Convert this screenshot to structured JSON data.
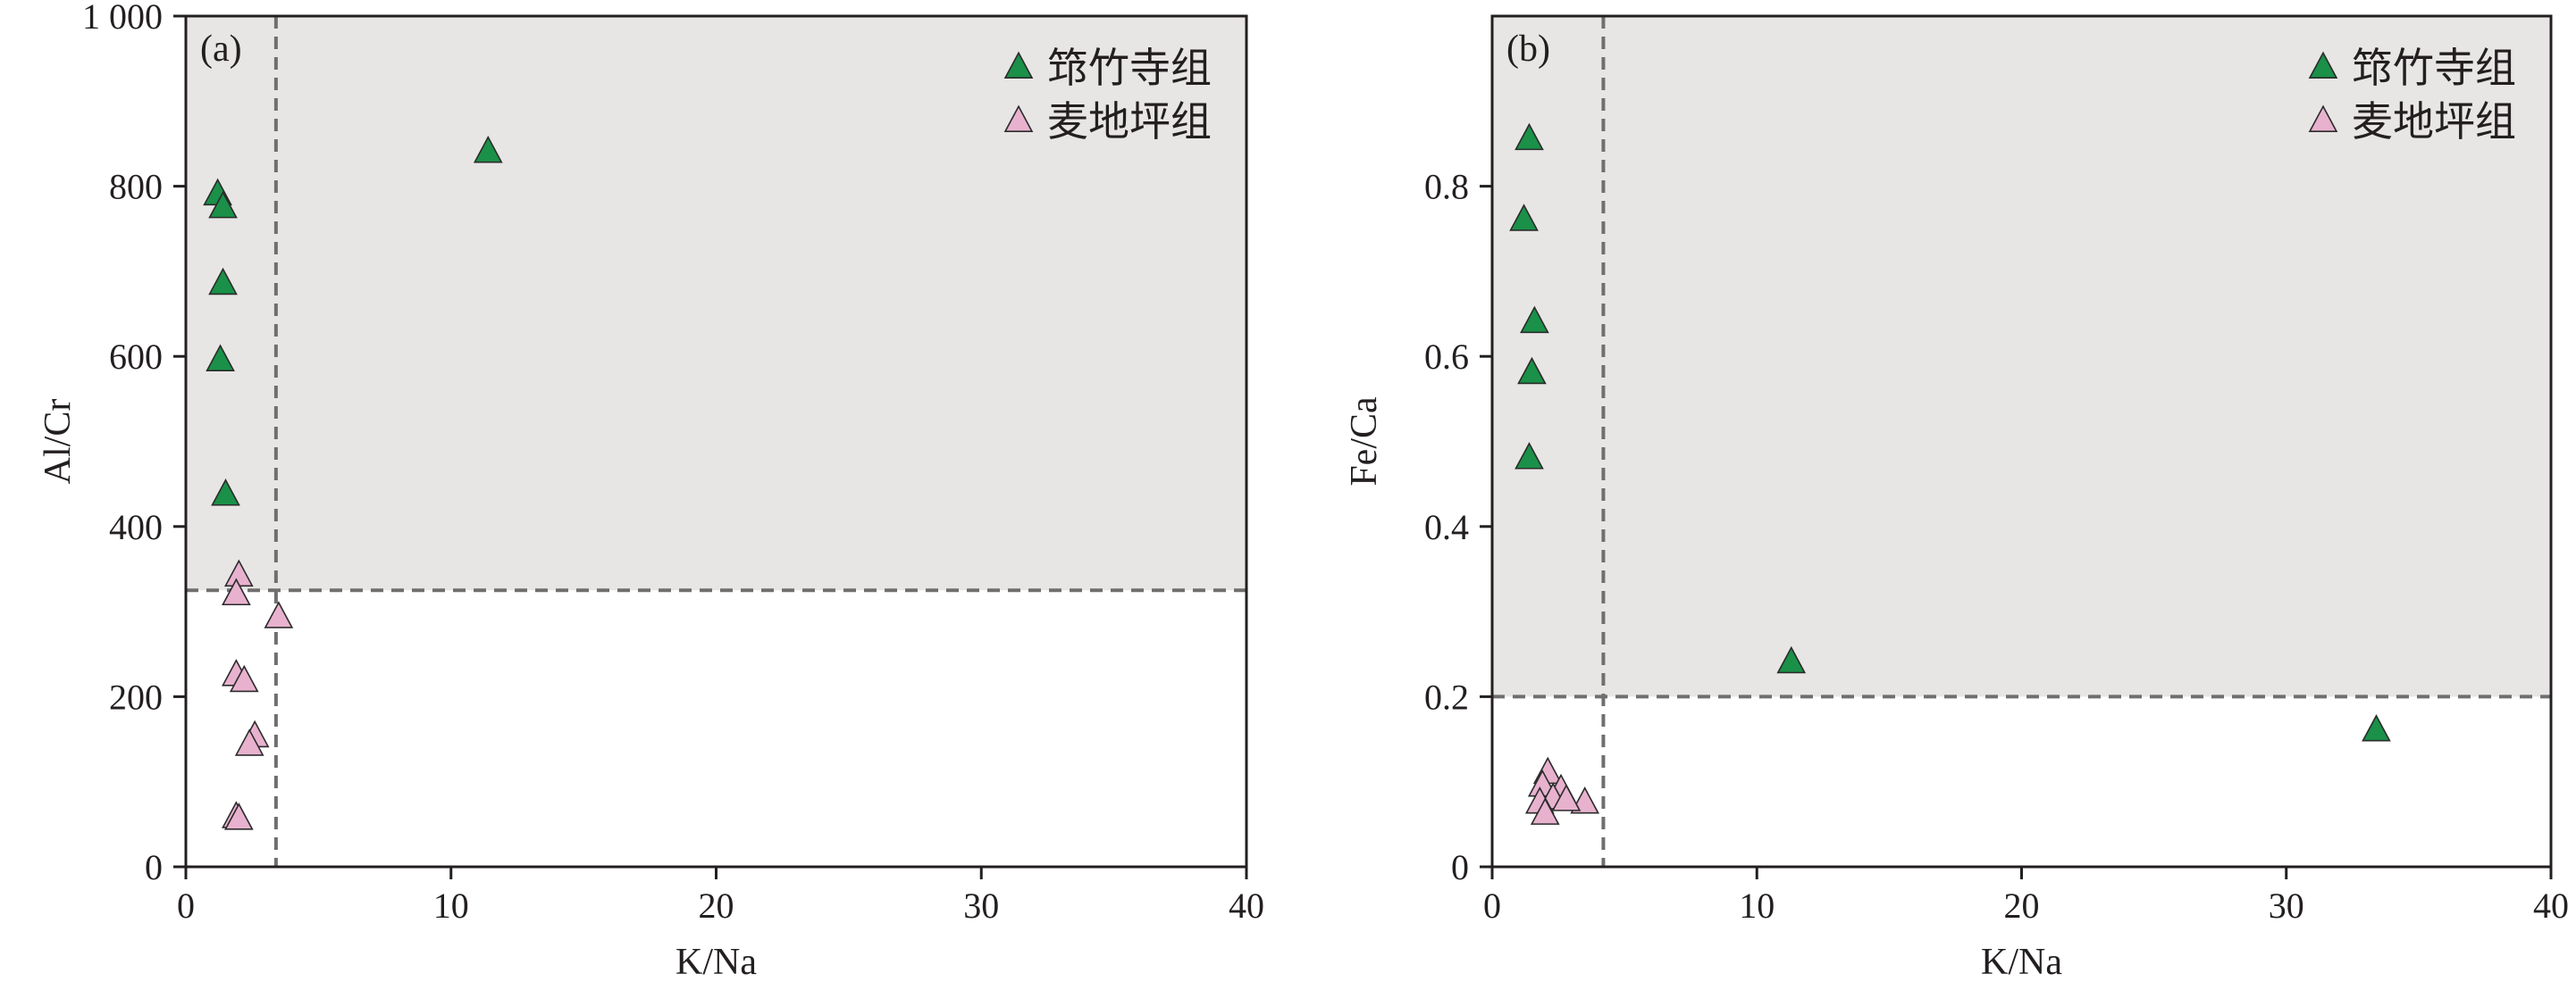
{
  "chart_data": [
    {
      "panel": "(a)",
      "type": "scatter",
      "xlabel": "K/Na",
      "ylabel": "Al/Cr",
      "xlim": [
        0,
        40
      ],
      "ylim": [
        0,
        1000
      ],
      "xticks": [
        0,
        10,
        20,
        30,
        40
      ],
      "xtick_labels": [
        "0",
        "10",
        "20",
        "30",
        "40"
      ],
      "yticks": [
        0,
        200,
        400,
        600,
        800,
        1000
      ],
      "ytick_labels": [
        "0",
        "200",
        "400",
        "600",
        "800",
        "1 000"
      ],
      "grid": false,
      "legend_position": "top-right",
      "threshold_x": 3.4,
      "threshold_y": 325,
      "shaded_region": "above threshold_y",
      "series": [
        {
          "name": "筇竹寺组",
          "color": "#1a9048",
          "marker": "triangle",
          "points": [
            [
              1.2,
              790
            ],
            [
              1.4,
              775
            ],
            [
              1.4,
              685
            ],
            [
              1.3,
              595
            ],
            [
              1.5,
              437
            ],
            [
              11.4,
              840
            ]
          ]
        },
        {
          "name": "麦地坪组",
          "color": "#e8b2cf",
          "marker": "triangle",
          "points": [
            [
              2.0,
              342
            ],
            [
              1.9,
              320
            ],
            [
              3.5,
              293
            ],
            [
              1.9,
              225
            ],
            [
              2.2,
              218
            ],
            [
              2.6,
              153
            ],
            [
              2.4,
              143
            ],
            [
              1.9,
              58
            ],
            [
              2.0,
              56
            ]
          ]
        }
      ]
    },
    {
      "panel": "(b)",
      "type": "scatter",
      "xlabel": "K/Na",
      "ylabel": "Fe/Ca",
      "xlim": [
        0,
        40
      ],
      "ylim": [
        0,
        1.0
      ],
      "xticks": [
        0,
        10,
        20,
        30,
        40
      ],
      "xtick_labels": [
        "0",
        "10",
        "20",
        "30",
        "40"
      ],
      "yticks": [
        0,
        0.2,
        0.4,
        0.6,
        0.8
      ],
      "ytick_labels": [
        "0",
        "0.2",
        "0.4",
        "0.6",
        "0.8"
      ],
      "grid": false,
      "legend_position": "top-right",
      "threshold_x": 4.2,
      "threshold_y": 0.2,
      "shaded_region": "above threshold_y",
      "series": [
        {
          "name": "筇竹寺组",
          "color": "#1a9048",
          "marker": "triangle",
          "points": [
            [
              1.4,
              0.855
            ],
            [
              1.2,
              0.76
            ],
            [
              1.6,
              0.64
            ],
            [
              1.5,
              0.58
            ],
            [
              1.4,
              0.48
            ],
            [
              11.3,
              0.24
            ],
            [
              33.4,
              0.16
            ]
          ]
        },
        {
          "name": "麦地坪组",
          "color": "#e8b2cf",
          "marker": "triangle",
          "points": [
            [
              2.1,
              0.11
            ],
            [
              1.9,
              0.095
            ],
            [
              2.6,
              0.09
            ],
            [
              2.3,
              0.08
            ],
            [
              1.8,
              0.075
            ],
            [
              3.5,
              0.075
            ],
            [
              2.8,
              0.078
            ],
            [
              2.0,
              0.062
            ]
          ]
        }
      ]
    }
  ]
}
